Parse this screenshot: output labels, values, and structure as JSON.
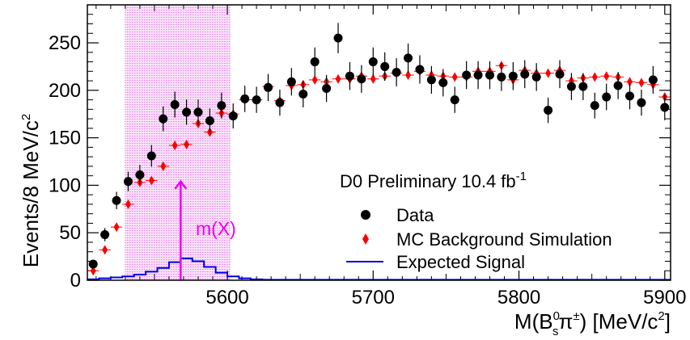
{
  "chart_data": {
    "type": "scatter",
    "xlabel": {
      "base": "M(B",
      "sup": "0",
      "sub": "s",
      "pi": "π",
      "pisup": "±",
      "unit": ") [MeV/c",
      "unitsup": "2",
      "end": "]"
    },
    "ylabel": {
      "text": "Events/8 MeV/c",
      "sup": "2"
    },
    "xlim": [
      5504,
      5904
    ],
    "ylim": [
      0,
      290
    ],
    "x_ticks": [
      5600,
      5700,
      5800,
      5900
    ],
    "y_ticks": [
      0,
      50,
      100,
      150,
      200,
      250
    ],
    "bin_width": 8,
    "annotation": {
      "main": "D0 Preliminary 10.4 fb",
      "sup": "-1"
    },
    "arrow_label": "m(X)",
    "arrow_x": 5568,
    "arrow_top": 104,
    "signal_region": {
      "x_min": 5530,
      "x_max": 5602,
      "color": "#cc00cc"
    },
    "legend_position": "center-right",
    "series": [
      {
        "name": "Data",
        "color": "#000000",
        "marker": "circle",
        "x": [
          5508,
          5516,
          5524,
          5532,
          5540,
          5548,
          5556,
          5564,
          5572,
          5580,
          5588,
          5596,
          5604,
          5612,
          5620,
          5628,
          5636,
          5644,
          5652,
          5660,
          5668,
          5676,
          5684,
          5692,
          5700,
          5708,
          5716,
          5724,
          5732,
          5740,
          5748,
          5756,
          5764,
          5772,
          5780,
          5788,
          5796,
          5804,
          5812,
          5820,
          5828,
          5836,
          5844,
          5852,
          5860,
          5868,
          5876,
          5884,
          5892,
          5900
        ],
        "y": [
          17,
          48,
          84,
          104,
          111,
          131,
          170,
          185,
          177,
          177,
          168,
          184,
          173,
          191,
          190,
          203,
          187,
          209,
          196,
          230,
          202,
          255,
          215,
          212,
          230,
          225,
          219,
          234,
          222,
          211,
          208,
          190,
          216,
          216,
          216,
          214,
          215,
          217,
          214,
          179,
          217,
          204,
          204,
          184,
          193,
          205,
          194,
          187,
          211,
          182
        ]
      },
      {
        "name": "MC Background Simulation",
        "color": "#ff0000",
        "marker": "diamond",
        "x": [
          5508,
          5516,
          5524,
          5532,
          5540,
          5548,
          5556,
          5564,
          5572,
          5580,
          5588,
          5596,
          5604,
          5612,
          5620,
          5628,
          5636,
          5644,
          5652,
          5660,
          5668,
          5676,
          5684,
          5692,
          5700,
          5708,
          5716,
          5724,
          5732,
          5740,
          5748,
          5756,
          5764,
          5772,
          5780,
          5788,
          5796,
          5804,
          5812,
          5820,
          5828,
          5836,
          5844,
          5852,
          5860,
          5868,
          5876,
          5884,
          5892,
          5900
        ],
        "y": [
          10,
          32,
          56,
          80,
          103,
          105,
          120,
          142,
          143,
          165,
          156,
          176,
          175,
          190,
          190,
          204,
          189,
          205,
          206,
          211,
          209,
          212,
          212,
          215,
          212,
          215,
          218,
          216,
          220,
          216,
          215,
          214,
          214,
          220,
          220,
          226,
          211,
          221,
          218,
          218,
          221,
          210,
          213,
          214,
          215,
          214,
          209,
          208,
          206,
          193
        ]
      },
      {
        "name": "Expected Signal",
        "color": "#0000dd",
        "marker": "line",
        "x": [
          5504,
          5512,
          5520,
          5528,
          5536,
          5544,
          5552,
          5560,
          5568,
          5576,
          5584,
          5592,
          5600,
          5608,
          5616,
          5624,
          5904
        ],
        "y": [
          1,
          2,
          3,
          4,
          6,
          9,
          13,
          19,
          23,
          20,
          14,
          8,
          4,
          2,
          1,
          0.5,
          0.5
        ]
      }
    ]
  }
}
